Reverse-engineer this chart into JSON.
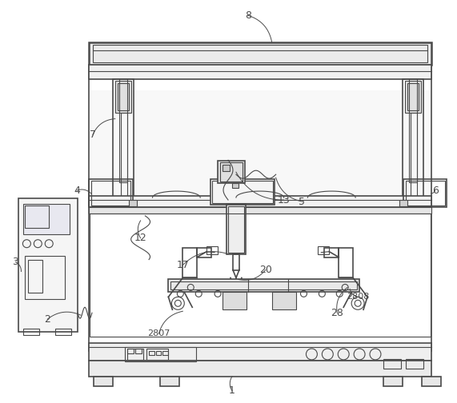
{
  "bg_color": "#ffffff",
  "line_color": "#4a4a4a",
  "label_color": "#222222",
  "fig_width": 5.71,
  "fig_height": 5.04,
  "dpi": 100
}
